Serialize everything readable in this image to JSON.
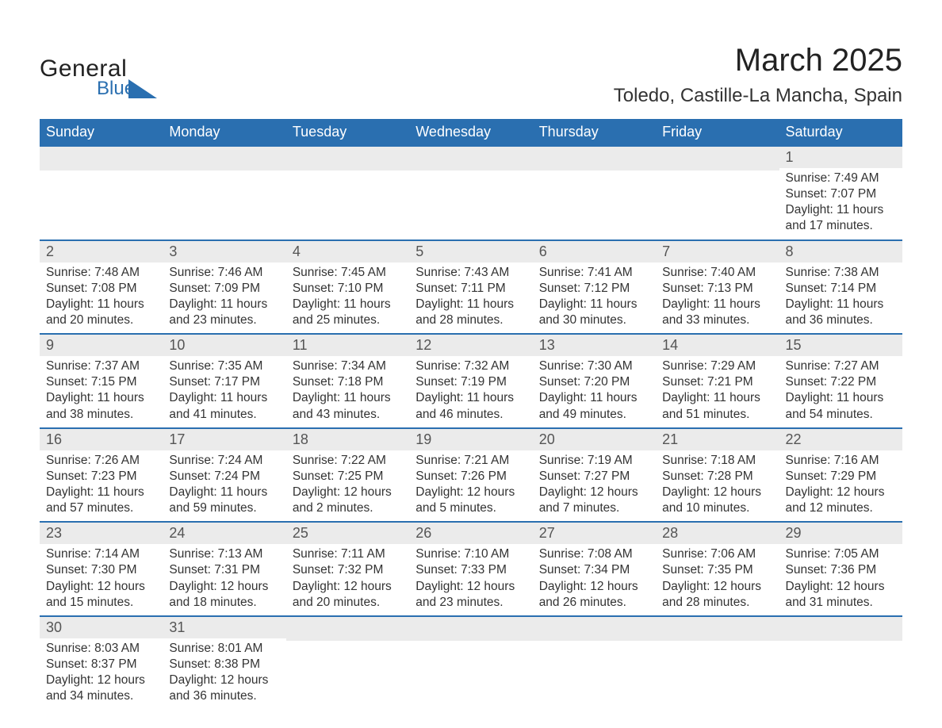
{
  "colors": {
    "header_bg": "#2a6fb0",
    "header_text": "#ffffff",
    "strip_bg": "#ebebeb",
    "row_border": "#2a6fb0",
    "body_text": "#333333",
    "daynum_text": "#555555",
    "page_bg": "#ffffff",
    "logo_accent": "#2a6fb0"
  },
  "fonts": {
    "title_size_pt": 30,
    "location_size_pt": 18,
    "header_size_pt": 14,
    "daynum_size_pt": 14,
    "body_size_pt": 12
  },
  "logo": {
    "word1": "General",
    "word2": "Blue"
  },
  "title": "March 2025",
  "location": "Toledo, Castille-La Mancha, Spain",
  "day_headers": [
    "Sunday",
    "Monday",
    "Tuesday",
    "Wednesday",
    "Thursday",
    "Friday",
    "Saturday"
  ],
  "weeks": [
    [
      null,
      null,
      null,
      null,
      null,
      null,
      {
        "n": "1",
        "sunrise": "Sunrise: 7:49 AM",
        "sunset": "Sunset: 7:07 PM",
        "day1": "Daylight: 11 hours",
        "day2": "and 17 minutes."
      }
    ],
    [
      {
        "n": "2",
        "sunrise": "Sunrise: 7:48 AM",
        "sunset": "Sunset: 7:08 PM",
        "day1": "Daylight: 11 hours",
        "day2": "and 20 minutes."
      },
      {
        "n": "3",
        "sunrise": "Sunrise: 7:46 AM",
        "sunset": "Sunset: 7:09 PM",
        "day1": "Daylight: 11 hours",
        "day2": "and 23 minutes."
      },
      {
        "n": "4",
        "sunrise": "Sunrise: 7:45 AM",
        "sunset": "Sunset: 7:10 PM",
        "day1": "Daylight: 11 hours",
        "day2": "and 25 minutes."
      },
      {
        "n": "5",
        "sunrise": "Sunrise: 7:43 AM",
        "sunset": "Sunset: 7:11 PM",
        "day1": "Daylight: 11 hours",
        "day2": "and 28 minutes."
      },
      {
        "n": "6",
        "sunrise": "Sunrise: 7:41 AM",
        "sunset": "Sunset: 7:12 PM",
        "day1": "Daylight: 11 hours",
        "day2": "and 30 minutes."
      },
      {
        "n": "7",
        "sunrise": "Sunrise: 7:40 AM",
        "sunset": "Sunset: 7:13 PM",
        "day1": "Daylight: 11 hours",
        "day2": "and 33 minutes."
      },
      {
        "n": "8",
        "sunrise": "Sunrise: 7:38 AM",
        "sunset": "Sunset: 7:14 PM",
        "day1": "Daylight: 11 hours",
        "day2": "and 36 minutes."
      }
    ],
    [
      {
        "n": "9",
        "sunrise": "Sunrise: 7:37 AM",
        "sunset": "Sunset: 7:15 PM",
        "day1": "Daylight: 11 hours",
        "day2": "and 38 minutes."
      },
      {
        "n": "10",
        "sunrise": "Sunrise: 7:35 AM",
        "sunset": "Sunset: 7:17 PM",
        "day1": "Daylight: 11 hours",
        "day2": "and 41 minutes."
      },
      {
        "n": "11",
        "sunrise": "Sunrise: 7:34 AM",
        "sunset": "Sunset: 7:18 PM",
        "day1": "Daylight: 11 hours",
        "day2": "and 43 minutes."
      },
      {
        "n": "12",
        "sunrise": "Sunrise: 7:32 AM",
        "sunset": "Sunset: 7:19 PM",
        "day1": "Daylight: 11 hours",
        "day2": "and 46 minutes."
      },
      {
        "n": "13",
        "sunrise": "Sunrise: 7:30 AM",
        "sunset": "Sunset: 7:20 PM",
        "day1": "Daylight: 11 hours",
        "day2": "and 49 minutes."
      },
      {
        "n": "14",
        "sunrise": "Sunrise: 7:29 AM",
        "sunset": "Sunset: 7:21 PM",
        "day1": "Daylight: 11 hours",
        "day2": "and 51 minutes."
      },
      {
        "n": "15",
        "sunrise": "Sunrise: 7:27 AM",
        "sunset": "Sunset: 7:22 PM",
        "day1": "Daylight: 11 hours",
        "day2": "and 54 minutes."
      }
    ],
    [
      {
        "n": "16",
        "sunrise": "Sunrise: 7:26 AM",
        "sunset": "Sunset: 7:23 PM",
        "day1": "Daylight: 11 hours",
        "day2": "and 57 minutes."
      },
      {
        "n": "17",
        "sunrise": "Sunrise: 7:24 AM",
        "sunset": "Sunset: 7:24 PM",
        "day1": "Daylight: 11 hours",
        "day2": "and 59 minutes."
      },
      {
        "n": "18",
        "sunrise": "Sunrise: 7:22 AM",
        "sunset": "Sunset: 7:25 PM",
        "day1": "Daylight: 12 hours",
        "day2": "and 2 minutes."
      },
      {
        "n": "19",
        "sunrise": "Sunrise: 7:21 AM",
        "sunset": "Sunset: 7:26 PM",
        "day1": "Daylight: 12 hours",
        "day2": "and 5 minutes."
      },
      {
        "n": "20",
        "sunrise": "Sunrise: 7:19 AM",
        "sunset": "Sunset: 7:27 PM",
        "day1": "Daylight: 12 hours",
        "day2": "and 7 minutes."
      },
      {
        "n": "21",
        "sunrise": "Sunrise: 7:18 AM",
        "sunset": "Sunset: 7:28 PM",
        "day1": "Daylight: 12 hours",
        "day2": "and 10 minutes."
      },
      {
        "n": "22",
        "sunrise": "Sunrise: 7:16 AM",
        "sunset": "Sunset: 7:29 PM",
        "day1": "Daylight: 12 hours",
        "day2": "and 12 minutes."
      }
    ],
    [
      {
        "n": "23",
        "sunrise": "Sunrise: 7:14 AM",
        "sunset": "Sunset: 7:30 PM",
        "day1": "Daylight: 12 hours",
        "day2": "and 15 minutes."
      },
      {
        "n": "24",
        "sunrise": "Sunrise: 7:13 AM",
        "sunset": "Sunset: 7:31 PM",
        "day1": "Daylight: 12 hours",
        "day2": "and 18 minutes."
      },
      {
        "n": "25",
        "sunrise": "Sunrise: 7:11 AM",
        "sunset": "Sunset: 7:32 PM",
        "day1": "Daylight: 12 hours",
        "day2": "and 20 minutes."
      },
      {
        "n": "26",
        "sunrise": "Sunrise: 7:10 AM",
        "sunset": "Sunset: 7:33 PM",
        "day1": "Daylight: 12 hours",
        "day2": "and 23 minutes."
      },
      {
        "n": "27",
        "sunrise": "Sunrise: 7:08 AM",
        "sunset": "Sunset: 7:34 PM",
        "day1": "Daylight: 12 hours",
        "day2": "and 26 minutes."
      },
      {
        "n": "28",
        "sunrise": "Sunrise: 7:06 AM",
        "sunset": "Sunset: 7:35 PM",
        "day1": "Daylight: 12 hours",
        "day2": "and 28 minutes."
      },
      {
        "n": "29",
        "sunrise": "Sunrise: 7:05 AM",
        "sunset": "Sunset: 7:36 PM",
        "day1": "Daylight: 12 hours",
        "day2": "and 31 minutes."
      }
    ],
    [
      {
        "n": "30",
        "sunrise": "Sunrise: 8:03 AM",
        "sunset": "Sunset: 8:37 PM",
        "day1": "Daylight: 12 hours",
        "day2": "and 34 minutes."
      },
      {
        "n": "31",
        "sunrise": "Sunrise: 8:01 AM",
        "sunset": "Sunset: 8:38 PM",
        "day1": "Daylight: 12 hours",
        "day2": "and 36 minutes."
      },
      null,
      null,
      null,
      null,
      null
    ]
  ]
}
